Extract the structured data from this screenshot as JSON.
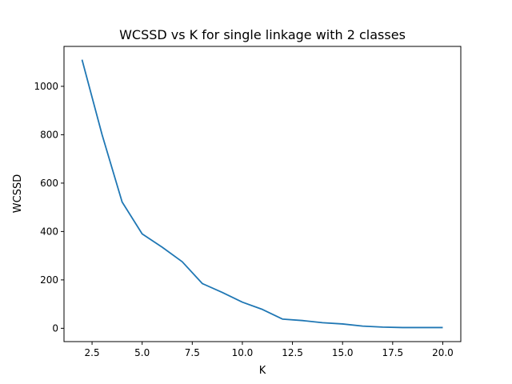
{
  "chart_data": {
    "type": "line",
    "title": "WCSSD vs K for single linkage with 2 classes",
    "xlabel": "K",
    "ylabel": "WCSSD",
    "xlim": [
      1.1,
      20.9
    ],
    "ylim": [
      -55,
      1165
    ],
    "xticks": [
      2.5,
      5.0,
      7.5,
      10.0,
      12.5,
      15.0,
      17.5,
      20.0
    ],
    "xtick_labels": [
      "2.5",
      "5.0",
      "7.5",
      "10.0",
      "12.5",
      "15.0",
      "17.5",
      "20.0"
    ],
    "yticks": [
      0,
      200,
      400,
      600,
      800,
      1000
    ],
    "ytick_labels": [
      "0",
      "200",
      "400",
      "600",
      "800",
      "1000"
    ],
    "grid": false,
    "series": [
      {
        "color": "#1f77b4",
        "x": [
          2,
          3,
          4,
          5,
          6,
          7,
          8,
          9,
          10,
          11,
          12,
          13,
          14,
          15,
          16,
          17,
          18,
          19,
          20
        ],
        "y": [
          1110,
          800,
          522,
          390,
          335,
          275,
          185,
          148,
          108,
          78,
          38,
          32,
          23,
          18,
          9,
          5,
          3,
          3,
          3
        ]
      }
    ]
  }
}
